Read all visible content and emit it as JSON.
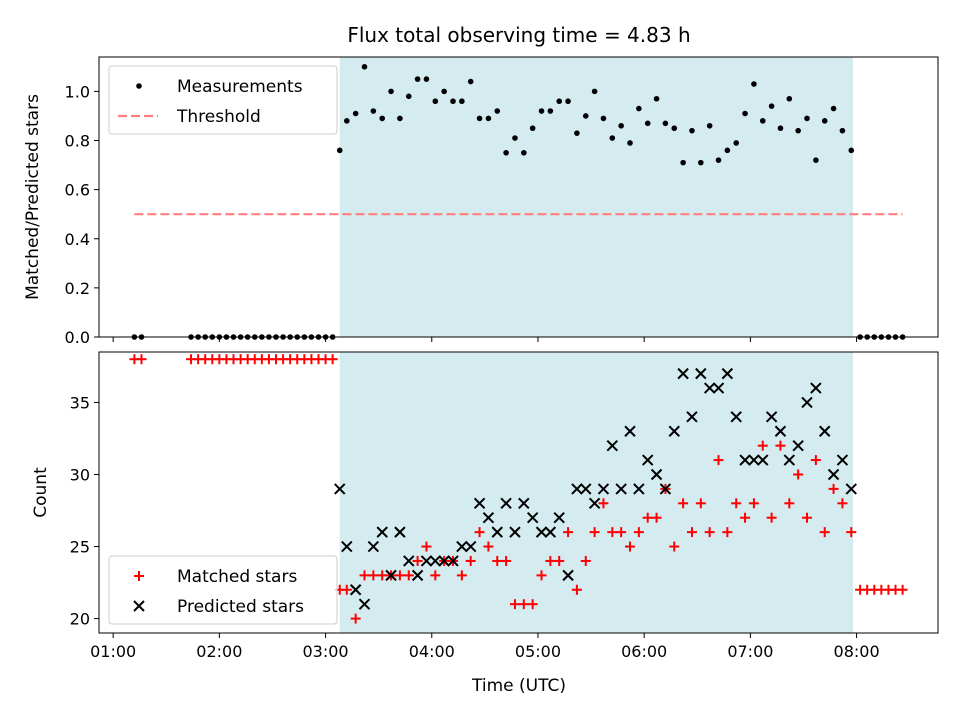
{
  "figure": {
    "title": "Flux total observing time = 4.83 h",
    "xlabel": "Time (UTC)"
  },
  "chart_data": [
    {
      "type": "scatter",
      "panel": "top",
      "ylabel": "Matched/Predicted stars",
      "xlim": [
        "00:52",
        "08:46"
      ],
      "ylim": [
        0,
        1.14
      ],
      "yticks": [
        0.0,
        0.2,
        0.4,
        0.6,
        0.8,
        1.0
      ],
      "legend_position": "upper-left",
      "shaded_interval": {
        "start": "03:08",
        "end": "07:58",
        "color": "#d4ebf0"
      },
      "series": [
        {
          "name": "Measurements",
          "color": "#000000",
          "marker": "dot",
          "x": [
            "01:12",
            "01:16",
            "01:44",
            "01:48",
            "01:52",
            "01:56",
            "02:00",
            "02:04",
            "02:08",
            "02:12",
            "02:16",
            "02:20",
            "02:24",
            "02:28",
            "02:32",
            "02:36",
            "02:40",
            "02:44",
            "02:48",
            "02:52",
            "02:56",
            "03:00",
            "03:04",
            "03:08",
            "03:12",
            "03:17",
            "03:22",
            "03:27",
            "03:32",
            "03:37",
            "03:42",
            "03:47",
            "03:52",
            "03:57",
            "04:02",
            "04:07",
            "04:12",
            "04:17",
            "04:22",
            "04:27",
            "04:32",
            "04:37",
            "04:42",
            "04:47",
            "04:52",
            "04:57",
            "05:02",
            "05:07",
            "05:12",
            "05:17",
            "05:22",
            "05:27",
            "05:32",
            "05:37",
            "05:42",
            "05:47",
            "05:52",
            "05:57",
            "06:02",
            "06:07",
            "06:12",
            "06:17",
            "06:22",
            "06:27",
            "06:32",
            "06:37",
            "06:42",
            "06:47",
            "06:52",
            "06:57",
            "07:02",
            "07:07",
            "07:12",
            "07:17",
            "07:22",
            "07:27",
            "07:32",
            "07:37",
            "07:42",
            "07:47",
            "07:52",
            "07:57",
            "08:02",
            "08:06",
            "08:10",
            "08:14",
            "08:18",
            "08:22",
            "08:26"
          ],
          "y": [
            0,
            0,
            0,
            0,
            0,
            0,
            0,
            0,
            0,
            0,
            0,
            0,
            0,
            0,
            0,
            0,
            0,
            0,
            0,
            0,
            0,
            0,
            0,
            0.76,
            0.88,
            0.91,
            1.1,
            0.92,
            0.89,
            1.0,
            0.89,
            0.98,
            1.05,
            1.05,
            0.96,
            1.0,
            0.96,
            0.96,
            1.04,
            0.89,
            0.89,
            0.92,
            0.75,
            0.81,
            0.75,
            0.85,
            0.92,
            0.92,
            0.96,
            0.96,
            0.83,
            0.9,
            1.0,
            0.89,
            0.81,
            0.86,
            0.79,
            0.93,
            0.87,
            0.97,
            0.87,
            0.85,
            0.71,
            0.84,
            0.71,
            0.86,
            0.72,
            0.76,
            0.79,
            0.91,
            1.03,
            0.88,
            0.94,
            0.85,
            0.97,
            0.84,
            0.89,
            0.72,
            0.88,
            0.93,
            0.84,
            0.76,
            0,
            0,
            0,
            0,
            0,
            0,
            0
          ]
        },
        {
          "name": "Threshold",
          "color": "#ff7f7f",
          "style": "dashed",
          "x": [
            "01:12",
            "08:26"
          ],
          "y": [
            0.5,
            0.5
          ]
        }
      ]
    },
    {
      "type": "scatter",
      "panel": "bottom",
      "ylabel": "Count",
      "xlim": [
        "00:52",
        "08:46"
      ],
      "ylim": [
        19,
        38.5
      ],
      "yticks": [
        20,
        25,
        30,
        35
      ],
      "xticks": [
        "01:00",
        "02:00",
        "03:00",
        "04:00",
        "05:00",
        "06:00",
        "07:00",
        "08:00"
      ],
      "legend_position": "lower-left",
      "shaded_interval": {
        "start": "03:08",
        "end": "07:58",
        "color": "#d4ebf0"
      },
      "series": [
        {
          "name": "Matched stars",
          "color": "#ff0000",
          "marker": "plus",
          "x": [
            "01:12",
            "01:16",
            "01:44",
            "01:48",
            "01:52",
            "01:56",
            "02:00",
            "02:04",
            "02:08",
            "02:12",
            "02:16",
            "02:20",
            "02:24",
            "02:28",
            "02:32",
            "02:36",
            "02:40",
            "02:44",
            "02:48",
            "02:52",
            "02:56",
            "03:00",
            "03:04",
            "03:08",
            "03:12",
            "03:17",
            "03:22",
            "03:27",
            "03:32",
            "03:37",
            "03:42",
            "03:47",
            "03:52",
            "03:57",
            "04:02",
            "04:07",
            "04:12",
            "04:17",
            "04:22",
            "04:27",
            "04:32",
            "04:37",
            "04:42",
            "04:47",
            "04:52",
            "04:57",
            "05:02",
            "05:07",
            "05:12",
            "05:17",
            "05:22",
            "05:27",
            "05:32",
            "05:37",
            "05:42",
            "05:47",
            "05:52",
            "05:57",
            "06:02",
            "06:07",
            "06:12",
            "06:17",
            "06:22",
            "06:27",
            "06:32",
            "06:37",
            "06:42",
            "06:47",
            "06:52",
            "06:57",
            "07:02",
            "07:07",
            "07:12",
            "07:17",
            "07:22",
            "07:27",
            "07:32",
            "07:37",
            "07:42",
            "07:47",
            "07:52",
            "07:57",
            "08:02",
            "08:06",
            "08:10",
            "08:14",
            "08:18",
            "08:22",
            "08:26"
          ],
          "y": [
            38,
            38,
            38,
            38,
            38,
            38,
            38,
            38,
            38,
            38,
            38,
            38,
            38,
            38,
            38,
            38,
            38,
            38,
            38,
            38,
            38,
            38,
            38,
            22,
            22,
            20,
            23,
            23,
            23,
            23,
            23,
            23,
            24,
            25,
            23,
            24,
            24,
            23,
            24,
            26,
            25,
            24,
            24,
            21,
            21,
            21,
            23,
            24,
            24,
            26,
            22,
            24,
            26,
            28,
            26,
            26,
            25,
            26,
            27,
            27,
            29,
            25,
            28,
            26,
            28,
            26,
            31,
            26,
            28,
            27,
            28,
            32,
            27,
            32,
            28,
            30,
            27,
            31,
            26,
            29,
            28,
            26,
            22,
            22,
            22,
            22,
            22,
            22,
            22
          ]
        },
        {
          "name": "Predicted stars",
          "color": "#000000",
          "marker": "x",
          "x": [
            "03:08",
            "03:12",
            "03:17",
            "03:22",
            "03:27",
            "03:32",
            "03:37",
            "03:42",
            "03:47",
            "03:52",
            "03:57",
            "04:02",
            "04:07",
            "04:12",
            "04:17",
            "04:22",
            "04:27",
            "04:32",
            "04:37",
            "04:42",
            "04:47",
            "04:52",
            "04:57",
            "05:02",
            "05:07",
            "05:12",
            "05:17",
            "05:22",
            "05:27",
            "05:32",
            "05:37",
            "05:42",
            "05:47",
            "05:52",
            "05:57",
            "06:02",
            "06:07",
            "06:12",
            "06:17",
            "06:22",
            "06:27",
            "06:32",
            "06:37",
            "06:42",
            "06:47",
            "06:52",
            "06:57",
            "07:02",
            "07:07",
            "07:12",
            "07:17",
            "07:22",
            "07:27",
            "07:32",
            "07:37",
            "07:42",
            "07:47",
            "07:52",
            "07:57"
          ],
          "y": [
            29,
            25,
            22,
            21,
            25,
            26,
            23,
            26,
            24,
            23,
            24,
            24,
            24,
            24,
            25,
            25,
            28,
            27,
            26,
            28,
            26,
            28,
            27,
            26,
            26,
            27,
            23,
            29,
            29,
            28,
            29,
            32,
            29,
            33,
            29,
            31,
            30,
            29,
            33,
            37,
            34,
            37,
            36,
            36,
            37,
            34,
            31,
            31,
            31,
            34,
            33,
            31,
            32,
            35,
            36,
            33,
            30,
            31,
            29
          ]
        }
      ]
    }
  ]
}
